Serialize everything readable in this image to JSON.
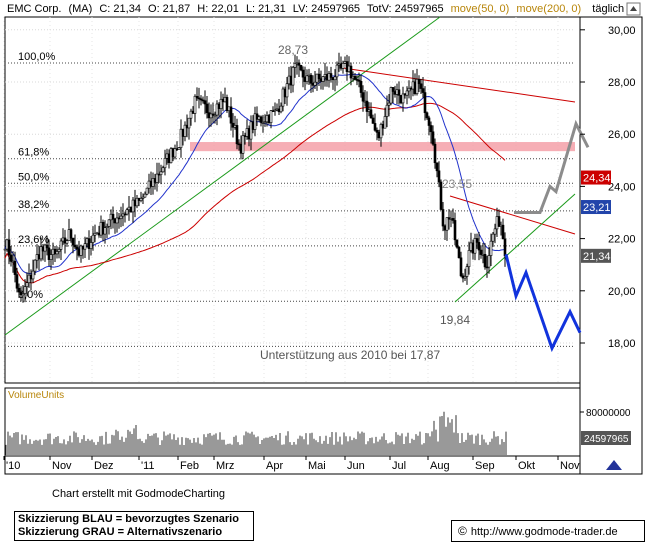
{
  "chart_data": {
    "type": "candlestick",
    "header": {
      "symbol": "EMC Corp.",
      "ma": "(MA)",
      "close": "C: 21,34",
      "open": "O: 21,87",
      "high": "H: 22,01",
      "low": "L: 21,31",
      "lv": "LV: 24597965",
      "totv": "TotV: 24597965",
      "ma50": "move(50, 0)",
      "ma200": "move(200, 0)",
      "interval": "täglich"
    },
    "y_axis": {
      "ticks": [
        "30,00",
        "28,00",
        "26,00",
        "24,00",
        "22,00",
        "20,00",
        "18,00"
      ],
      "tick_values": [
        30,
        28,
        26,
        24,
        22,
        20,
        18
      ]
    },
    "x_axis": {
      "labels": [
        "'10",
        "Nov",
        "Dez",
        "'11",
        "Feb",
        "Mrz",
        "Apr",
        "Mai",
        "Jun",
        "Jul",
        "Aug",
        "Sep",
        "Okt",
        "Nov"
      ]
    },
    "price_tags": [
      {
        "value": 24.34,
        "label": "24,34",
        "color": "#cc0000"
      },
      {
        "value": 23.21,
        "label": "23,21",
        "color": "#2244aa"
      },
      {
        "value": 21.34,
        "label": "21,34",
        "color": "#555555"
      }
    ],
    "fib_levels": [
      {
        "label": "100,0%",
        "value": 28.73
      },
      {
        "label": "61,8%",
        "value": 25.06
      },
      {
        "label": "50,0%",
        "value": 24.12
      },
      {
        "label": "38,2%",
        "value": 23.06
      },
      {
        "label": "23,6%",
        "value": 21.72
      },
      {
        "label": "0,0%",
        "value": 19.6
      }
    ],
    "annotations": {
      "high": "28,73",
      "mid": "23,55",
      "low": "19,84",
      "support": "Unterstützung aus 2010 bei 17,87"
    },
    "resistance_zone": [
      25.35,
      25.7
    ],
    "volume": {
      "label": "VolumeUnits",
      "tick": "80000000",
      "last": "24597965"
    },
    "scenario_blue": [
      [
        0,
        21.4
      ],
      [
        1,
        19.8
      ],
      [
        2,
        20.7
      ],
      [
        3,
        17.8
      ],
      [
        4,
        19.2
      ],
      [
        5,
        18.4
      ]
    ],
    "scenario_gray": [
      [
        0,
        23.0
      ],
      [
        1,
        23.0
      ],
      [
        2,
        24.0
      ],
      [
        3,
        23.8
      ],
      [
        4,
        26.4
      ],
      [
        5,
        25.5
      ]
    ]
  },
  "footer": {
    "credit": "Chart erstellt mit GodmodeCharting",
    "legend_blue": "Skizzierung BLAU = bevorzugtes Szenario",
    "legend_gray": "Skizzierung GRAU = Alternativszenario",
    "copyright_symbol": "©",
    "url": "http://www.godmode-trader.de"
  }
}
